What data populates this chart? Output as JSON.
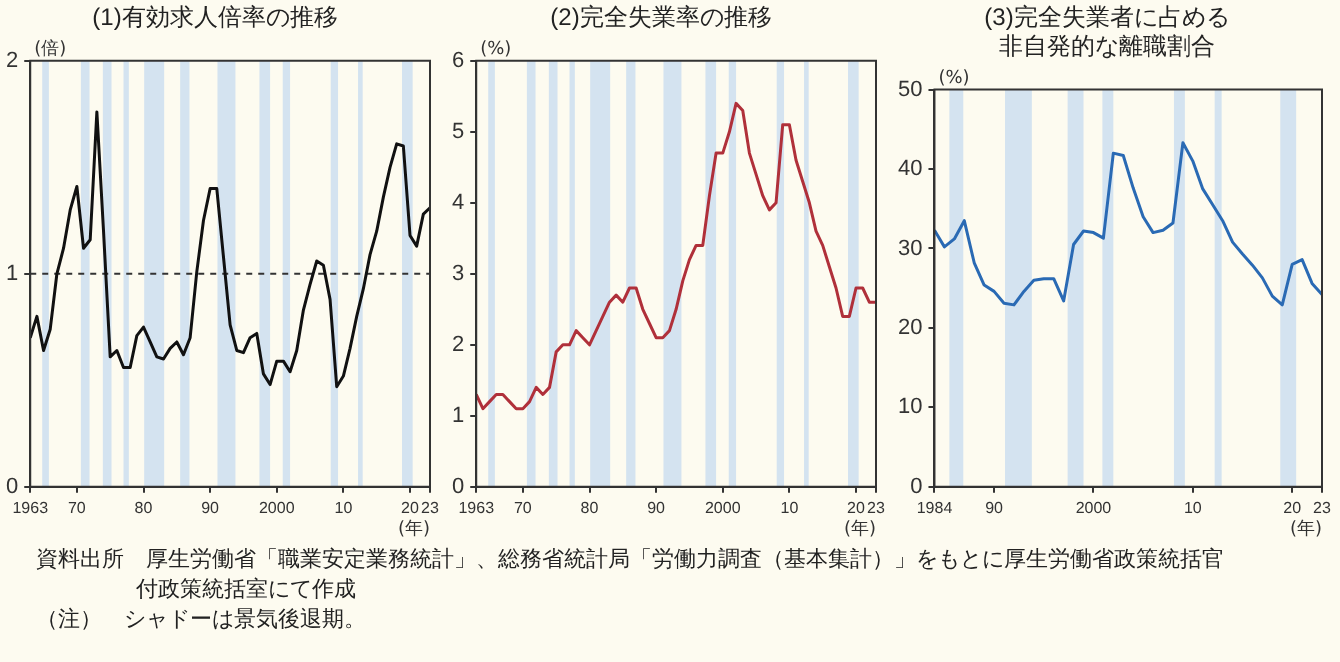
{
  "chart_data": [
    {
      "type": "line",
      "title": "(1)有効求人倍率の推移",
      "ylabel": "(倍)",
      "xlabel": "(年)",
      "grid": false,
      "legend": false,
      "marker": "none",
      "x": [
        1963,
        1964,
        1965,
        1966,
        1967,
        1968,
        1969,
        1970,
        1971,
        1972,
        1973,
        1974,
        1975,
        1976,
        1977,
        1978,
        1979,
        1980,
        1981,
        1982,
        1983,
        1984,
        1985,
        1986,
        1987,
        1988,
        1989,
        1990,
        1991,
        1992,
        1993,
        1994,
        1995,
        1996,
        1997,
        1998,
        1999,
        2000,
        2001,
        2002,
        2003,
        2004,
        2005,
        2006,
        2007,
        2008,
        2009,
        2010,
        2011,
        2012,
        2013,
        2014,
        2015,
        2016,
        2017,
        2018,
        2019,
        2020,
        2021,
        2022,
        2023
      ],
      "series": [
        {
          "color": "#111111",
          "values": [
            0.7,
            0.8,
            0.64,
            0.74,
            1.0,
            1.12,
            1.3,
            1.41,
            1.12,
            1.16,
            1.76,
            1.2,
            0.61,
            0.64,
            0.56,
            0.56,
            0.71,
            0.75,
            0.68,
            0.61,
            0.6,
            0.65,
            0.68,
            0.62,
            0.7,
            1.01,
            1.25,
            1.4,
            1.4,
            1.08,
            0.76,
            0.64,
            0.63,
            0.7,
            0.72,
            0.53,
            0.48,
            0.59,
            0.59,
            0.54,
            0.64,
            0.83,
            0.95,
            1.06,
            1.04,
            0.88,
            0.47,
            0.52,
            0.65,
            0.8,
            0.93,
            1.09,
            1.2,
            1.36,
            1.5,
            1.61,
            1.6,
            1.18,
            1.13,
            1.28,
            1.31
          ]
        }
      ],
      "xlim": [
        1963,
        2023
      ],
      "xticks": [
        1963,
        {
          "value": 1970,
          "label": "70"
        },
        {
          "value": 1980,
          "label": "80"
        },
        {
          "value": 1990,
          "label": "90"
        },
        2000,
        {
          "value": 2010,
          "label": "10"
        },
        {
          "value": 2020,
          "label": "20"
        },
        {
          "value": 2023,
          "label": "23"
        }
      ],
      "ylim": [
        0,
        2
      ],
      "yticks": [
        0,
        1,
        2
      ],
      "ref_lines": [
        {
          "axis": "y",
          "value": 1,
          "line_style": "dashed",
          "color": "#333333"
        }
      ],
      "bands": [
        {
          "axis": "x",
          "from": 1964.8,
          "to": 1965.8,
          "color": "#d4e3f0"
        },
        {
          "axis": "x",
          "from": 1970.6,
          "to": 1971.9,
          "color": "#d4e3f0"
        },
        {
          "axis": "x",
          "from": 1973.9,
          "to": 1975.2,
          "color": "#d4e3f0"
        },
        {
          "axis": "x",
          "from": 1977.0,
          "to": 1977.8,
          "color": "#d4e3f0"
        },
        {
          "axis": "x",
          "from": 1980.1,
          "to": 1983.1,
          "color": "#d4e3f0"
        },
        {
          "axis": "x",
          "from": 1985.5,
          "to": 1986.9,
          "color": "#d4e3f0"
        },
        {
          "axis": "x",
          "from": 1991.1,
          "to": 1993.8,
          "color": "#d4e3f0"
        },
        {
          "axis": "x",
          "from": 1997.4,
          "to": 1999.0,
          "color": "#d4e3f0"
        },
        {
          "axis": "x",
          "from": 2000.9,
          "to": 2002.0,
          "color": "#d4e3f0"
        },
        {
          "axis": "x",
          "from": 2008.1,
          "to": 2009.2,
          "color": "#d4e3f0"
        },
        {
          "axis": "x",
          "from": 2012.2,
          "to": 2012.9,
          "color": "#d4e3f0"
        },
        {
          "axis": "x",
          "from": 2018.8,
          "to": 2020.4,
          "color": "#d4e3f0"
        }
      ],
      "annotations": [
        "資料出所　厚生労働省「職業安定業務統計」、総務省統計局「労働力調査（基本集計）」をもとに厚生労働省政策統括官付政策統括室にて作成",
        "（注）　シャドーは景気後退期。"
      ]
    },
    {
      "type": "line",
      "title": "(2)完全失業率の推移",
      "ylabel": "(%)",
      "xlabel": "(年)",
      "grid": false,
      "legend": false,
      "marker": "none",
      "x": [
        1963,
        1964,
        1965,
        1966,
        1967,
        1968,
        1969,
        1970,
        1971,
        1972,
        1973,
        1974,
        1975,
        1976,
        1977,
        1978,
        1979,
        1980,
        1981,
        1982,
        1983,
        1984,
        1985,
        1986,
        1987,
        1988,
        1989,
        1990,
        1991,
        1992,
        1993,
        1994,
        1995,
        1996,
        1997,
        1998,
        1999,
        2000,
        2001,
        2002,
        2003,
        2004,
        2005,
        2006,
        2007,
        2008,
        2009,
        2010,
        2011,
        2012,
        2013,
        2014,
        2015,
        2016,
        2017,
        2018,
        2019,
        2020,
        2021,
        2022,
        2023
      ],
      "series": [
        {
          "color": "#b0303a",
          "values": [
            1.3,
            1.1,
            1.2,
            1.3,
            1.3,
            1.2,
            1.1,
            1.1,
            1.2,
            1.4,
            1.3,
            1.4,
            1.9,
            2.0,
            2.0,
            2.2,
            2.1,
            2.0,
            2.2,
            2.4,
            2.6,
            2.7,
            2.6,
            2.8,
            2.8,
            2.5,
            2.3,
            2.1,
            2.1,
            2.2,
            2.5,
            2.9,
            3.2,
            3.4,
            3.4,
            4.1,
            4.7,
            4.7,
            5.0,
            5.4,
            5.3,
            4.7,
            4.4,
            4.1,
            3.9,
            4.0,
            5.1,
            5.1,
            4.6,
            4.3,
            4.0,
            3.6,
            3.4,
            3.1,
            2.8,
            2.4,
            2.4,
            2.8,
            2.8,
            2.6,
            2.6
          ]
        }
      ],
      "xlim": [
        1963,
        2023
      ],
      "xticks": [
        1963,
        {
          "value": 1970,
          "label": "70"
        },
        {
          "value": 1980,
          "label": "80"
        },
        {
          "value": 1990,
          "label": "90"
        },
        2000,
        {
          "value": 2010,
          "label": "10"
        },
        {
          "value": 2020,
          "label": "20"
        },
        {
          "value": 2023,
          "label": "23"
        }
      ],
      "ylim": [
        0,
        6
      ],
      "yticks": [
        0,
        1,
        2,
        3,
        4,
        5,
        6
      ],
      "bands": [
        {
          "axis": "x",
          "from": 1964.8,
          "to": 1965.8,
          "color": "#d4e3f0"
        },
        {
          "axis": "x",
          "from": 1970.6,
          "to": 1971.9,
          "color": "#d4e3f0"
        },
        {
          "axis": "x",
          "from": 1973.9,
          "to": 1975.2,
          "color": "#d4e3f0"
        },
        {
          "axis": "x",
          "from": 1977.0,
          "to": 1977.8,
          "color": "#d4e3f0"
        },
        {
          "axis": "x",
          "from": 1980.1,
          "to": 1983.1,
          "color": "#d4e3f0"
        },
        {
          "axis": "x",
          "from": 1985.5,
          "to": 1986.9,
          "color": "#d4e3f0"
        },
        {
          "axis": "x",
          "from": 1991.1,
          "to": 1993.8,
          "color": "#d4e3f0"
        },
        {
          "axis": "x",
          "from": 1997.4,
          "to": 1999.0,
          "color": "#d4e3f0"
        },
        {
          "axis": "x",
          "from": 2000.9,
          "to": 2002.0,
          "color": "#d4e3f0"
        },
        {
          "axis": "x",
          "from": 2008.1,
          "to": 2009.2,
          "color": "#d4e3f0"
        },
        {
          "axis": "x",
          "from": 2012.2,
          "to": 2012.9,
          "color": "#d4e3f0"
        },
        {
          "axis": "x",
          "from": 2018.8,
          "to": 2020.4,
          "color": "#d4e3f0"
        }
      ]
    },
    {
      "type": "line",
      "title": "(3)完全失業者に占める非自発的な離職割合",
      "ylabel": "(%)",
      "xlabel": "(年)",
      "grid": false,
      "legend": false,
      "marker": "none",
      "x": [
        1984,
        1985,
        1986,
        1987,
        1988,
        1989,
        1990,
        1991,
        1992,
        1993,
        1994,
        1995,
        1996,
        1997,
        1998,
        1999,
        2000,
        2001,
        2002,
        2003,
        2004,
        2005,
        2006,
        2007,
        2008,
        2009,
        2010,
        2011,
        2012,
        2013,
        2014,
        2015,
        2016,
        2017,
        2018,
        2019,
        2020,
        2021,
        2022,
        2023
      ],
      "series": [
        {
          "color": "#2a6ab4",
          "values": [
            32.3,
            30.2,
            31.2,
            33.5,
            28.2,
            25.4,
            24.6,
            23.1,
            22.9,
            24.6,
            26.0,
            26.2,
            26.2,
            23.4,
            30.5,
            32.2,
            32.0,
            31.3,
            42.0,
            41.7,
            37.6,
            34.0,
            32.0,
            32.3,
            33.2,
            43.3,
            41.0,
            37.5,
            35.5,
            33.5,
            30.8,
            29.3,
            27.9,
            26.3,
            24.0,
            22.9,
            28.0,
            28.6,
            25.6,
            24.2
          ]
        }
      ],
      "xlim": [
        1984,
        2023
      ],
      "xticks": [
        1984,
        {
          "value": 1990,
          "label": "90"
        },
        2000,
        {
          "value": 2010,
          "label": "10"
        },
        {
          "value": 2020,
          "label": "20"
        },
        {
          "value": 2023,
          "label": "23"
        }
      ],
      "ylim": [
        0,
        50
      ],
      "yticks": [
        0,
        10,
        20,
        30,
        40,
        50
      ],
      "bands": [
        {
          "axis": "x",
          "from": 1985.5,
          "to": 1986.9,
          "color": "#d4e3f0"
        },
        {
          "axis": "x",
          "from": 1991.1,
          "to": 1993.8,
          "color": "#d4e3f0"
        },
        {
          "axis": "x",
          "from": 1997.4,
          "to": 1999.0,
          "color": "#d4e3f0"
        },
        {
          "axis": "x",
          "from": 2000.9,
          "to": 2002.0,
          "color": "#d4e3f0"
        },
        {
          "axis": "x",
          "from": 2008.1,
          "to": 2009.2,
          "color": "#d4e3f0"
        },
        {
          "axis": "x",
          "from": 2012.2,
          "to": 2012.9,
          "color": "#d4e3f0"
        },
        {
          "axis": "x",
          "from": 2018.8,
          "to": 2020.4,
          "color": "#d4e3f0"
        }
      ]
    }
  ]
}
